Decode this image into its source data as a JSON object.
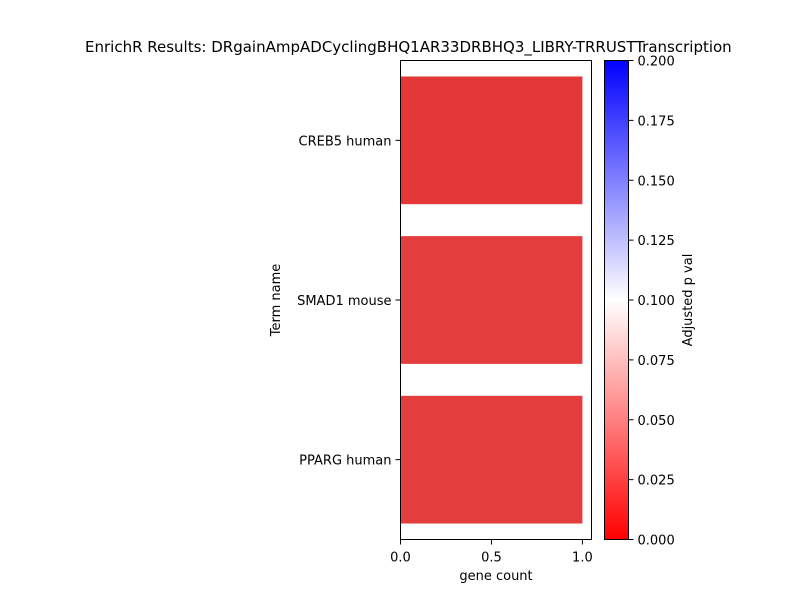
{
  "chart_data": {
    "type": "bar",
    "orientation": "horizontal",
    "title": "EnrichR Results: DRgainAmpADCyclingBHQ1AR33DRBHQ3_LIBRY-TRRUSTTranscription",
    "xlabel": "gene count",
    "ylabel": "Term name",
    "categories": [
      "CREB5 human",
      "SMAD1 mouse",
      "PPARG human"
    ],
    "values": [
      1,
      1,
      1
    ],
    "adjusted_p_values": [
      0.011,
      0.013,
      0.013
    ],
    "bar_colors": [
      "#e43737",
      "#e43d3d",
      "#e43d3d"
    ],
    "xlim": [
      0,
      1.05
    ],
    "xticks": [
      "0.0",
      "0.5",
      "1.0"
    ],
    "grid": false,
    "colorbar": {
      "label": "Adjusted p val",
      "range": [
        0,
        0.2
      ],
      "ticks": [
        "0.000",
        "0.025",
        "0.050",
        "0.075",
        "0.100",
        "0.125",
        "0.150",
        "0.175",
        "0.200"
      ],
      "colors": [
        "#ff0000",
        "#ffffff",
        "#0000ff"
      ]
    }
  }
}
